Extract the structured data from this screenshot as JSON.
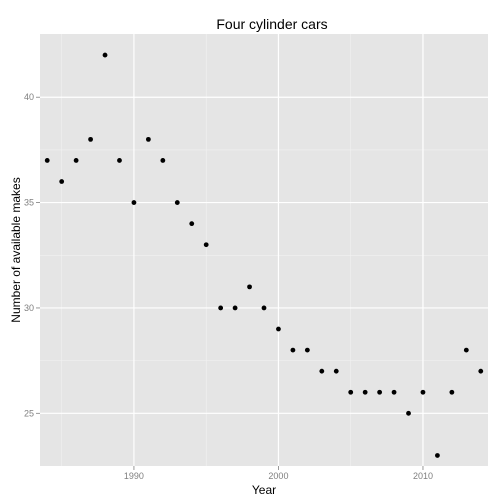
{
  "chart_data": {
    "type": "scatter",
    "title": "Four cylinder cars",
    "xlabel": "Year",
    "ylabel": "Number of available makes",
    "xlim": [
      1983.5,
      2014.5
    ],
    "ylim": [
      22.5,
      43.0
    ],
    "x_ticks": [
      1990,
      2000,
      2010
    ],
    "x_minor_ticks": [
      1985,
      1995,
      2005
    ],
    "y_ticks": [
      25,
      30,
      35,
      40
    ],
    "y_minor_ticks": [
      27.5,
      32.5,
      37.5
    ],
    "grid": true,
    "legend": "none",
    "colors": {
      "panel": "#e5e5e5",
      "grid_major": "#ffffff",
      "grid_minor": "#f2f2f2",
      "point": "#000000",
      "tick_label": "#7f7f7f"
    },
    "points": [
      {
        "x": 1984,
        "y": 37
      },
      {
        "x": 1985,
        "y": 36
      },
      {
        "x": 1986,
        "y": 37
      },
      {
        "x": 1987,
        "y": 38
      },
      {
        "x": 1988,
        "y": 42
      },
      {
        "x": 1989,
        "y": 37
      },
      {
        "x": 1990,
        "y": 35
      },
      {
        "x": 1991,
        "y": 38
      },
      {
        "x": 1992,
        "y": 37
      },
      {
        "x": 1993,
        "y": 35
      },
      {
        "x": 1994,
        "y": 34
      },
      {
        "x": 1995,
        "y": 33
      },
      {
        "x": 1996,
        "y": 30
      },
      {
        "x": 1997,
        "y": 30
      },
      {
        "x": 1998,
        "y": 31
      },
      {
        "x": 1999,
        "y": 30
      },
      {
        "x": 2000,
        "y": 29
      },
      {
        "x": 2001,
        "y": 28
      },
      {
        "x": 2002,
        "y": 28
      },
      {
        "x": 2003,
        "y": 27
      },
      {
        "x": 2004,
        "y": 27
      },
      {
        "x": 2005,
        "y": 26
      },
      {
        "x": 2006,
        "y": 26
      },
      {
        "x": 2007,
        "y": 26
      },
      {
        "x": 2008,
        "y": 26
      },
      {
        "x": 2009,
        "y": 25
      },
      {
        "x": 2010,
        "y": 26
      },
      {
        "x": 2011,
        "y": 23
      },
      {
        "x": 2012,
        "y": 26
      },
      {
        "x": 2013,
        "y": 28
      },
      {
        "x": 2014,
        "y": 27
      }
    ]
  }
}
